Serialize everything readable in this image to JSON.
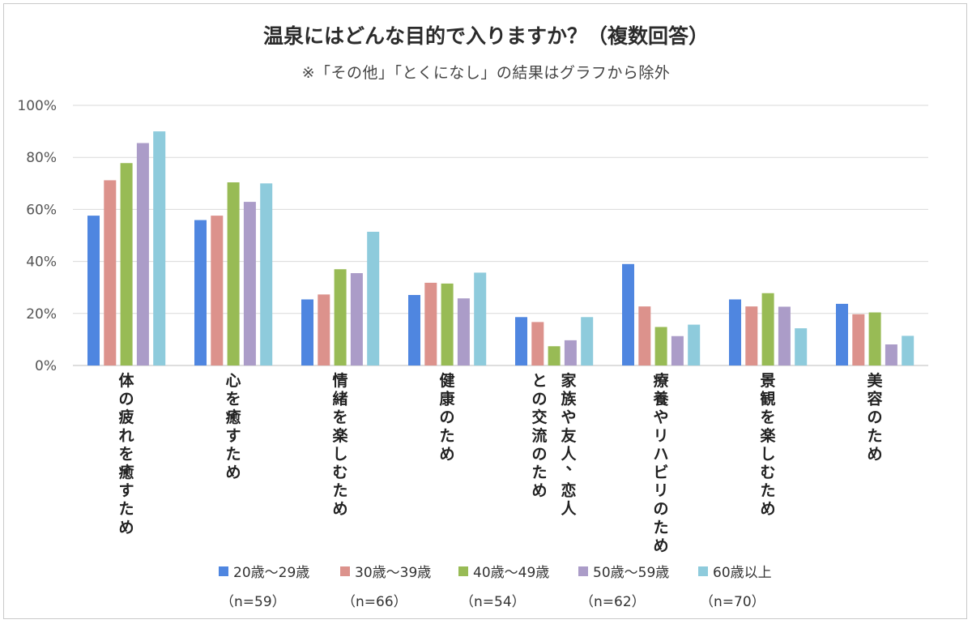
{
  "chart_data": {
    "type": "bar",
    "title": "温泉にはどんな目的で入りますか？（複数回答）",
    "subtitle": "※「その他」「とくになし」の結果はグラフから除外",
    "categories": [
      "体の疲れを癒すため",
      "心を癒すため",
      "情緒を楽しむため",
      "健康のため",
      "家族や友人、恋人との交流のため",
      "療養やリハビリのため",
      "景観を楽しむため",
      "美容のため"
    ],
    "category_lines": [
      [
        "体の疲れを癒すため"
      ],
      [
        "心を癒すため"
      ],
      [
        "情緒を楽しむため"
      ],
      [
        "健康のため"
      ],
      [
        "家族や友人、恋人",
        "との交流のため"
      ],
      [
        "療養やリハビリのため"
      ],
      [
        "景観を楽しむため"
      ],
      [
        "美容のため"
      ]
    ],
    "series": [
      {
        "name": "20歳〜29歳",
        "n": "（n=59）",
        "color": "#4f86e0",
        "values": [
          57.6,
          55.9,
          25.4,
          27.1,
          18.6,
          39.0,
          25.4,
          23.7
        ]
      },
      {
        "name": "30歳〜39歳",
        "n": "（n=66）",
        "color": "#dc928c",
        "values": [
          71.2,
          57.6,
          27.3,
          31.8,
          16.7,
          22.7,
          22.7,
          19.7
        ]
      },
      {
        "name": "40歳〜49歳",
        "n": "（n=54）",
        "color": "#98bb55",
        "values": [
          77.8,
          70.4,
          37.0,
          31.5,
          7.4,
          14.8,
          27.8,
          20.4
        ]
      },
      {
        "name": "50歳〜59歳",
        "n": "（n=62）",
        "color": "#ab9cc8",
        "values": [
          85.5,
          62.9,
          35.5,
          25.8,
          9.7,
          11.3,
          22.6,
          8.1
        ]
      },
      {
        "name": "60歳以上",
        "n": "（n=70）",
        "color": "#8ecbdc",
        "values": [
          90.0,
          70.0,
          51.4,
          35.7,
          18.6,
          15.7,
          14.3,
          11.4
        ]
      }
    ],
    "ylim": [
      0,
      100
    ],
    "yticks": [
      "0%",
      "20%",
      "40%",
      "60%",
      "80%",
      "100%"
    ],
    "grid": true,
    "legend_position": "bottom"
  }
}
